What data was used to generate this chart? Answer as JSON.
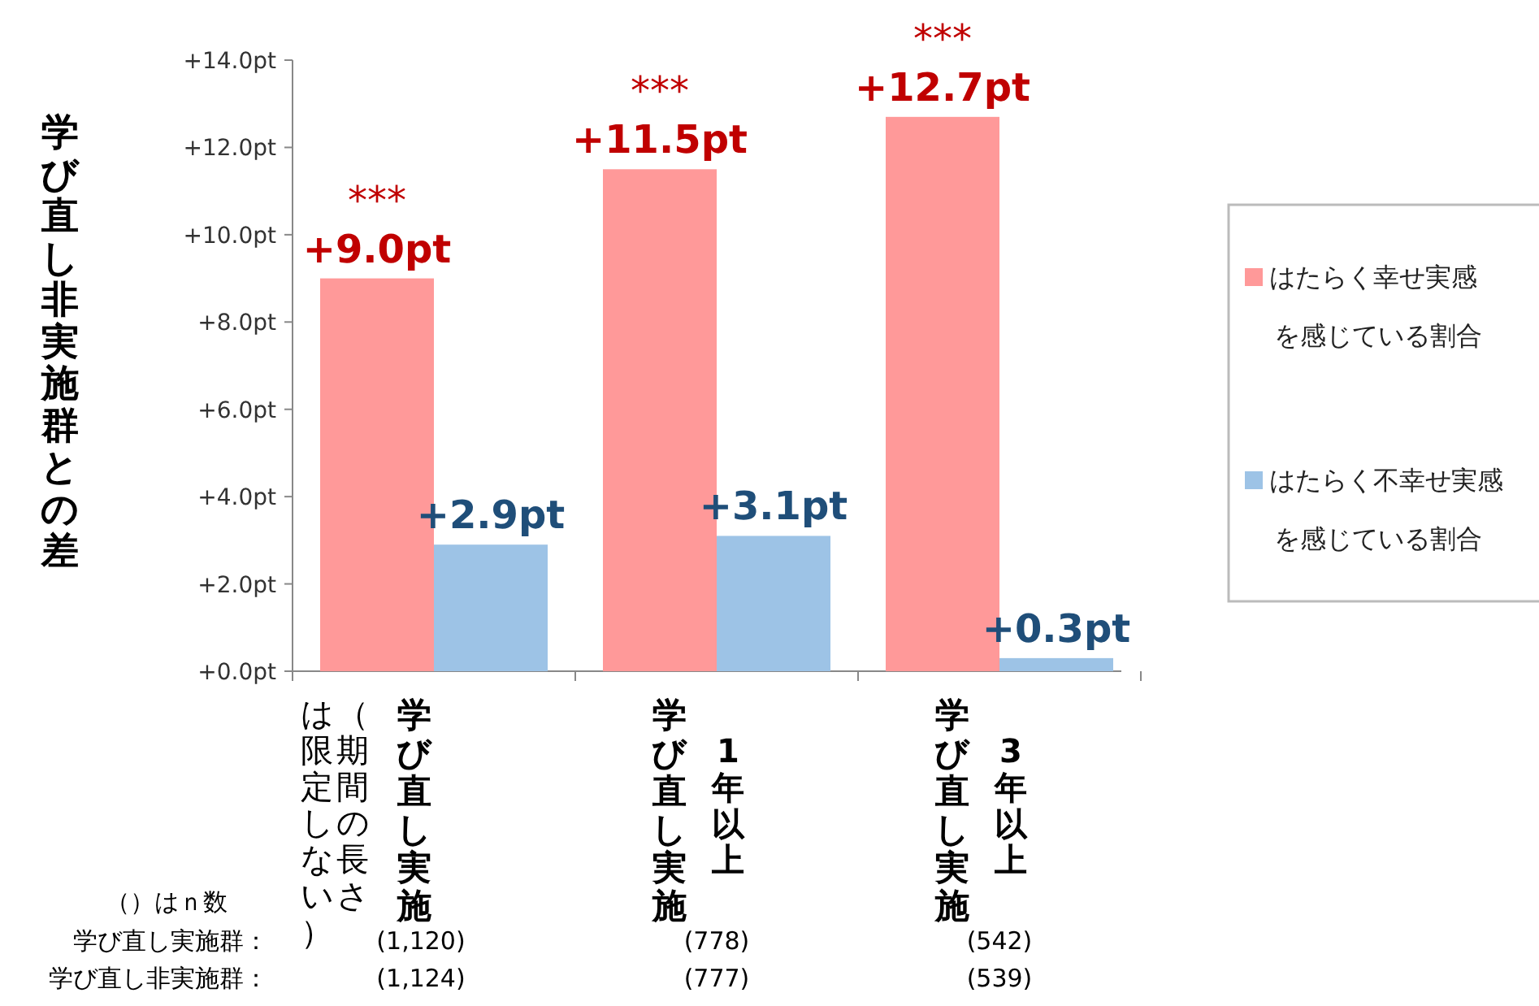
{
  "chart_data": {
    "type": "bar",
    "ylabel": "学び直し非実施群との差",
    "categories": [
      "学び直し実施",
      "学び直し実施",
      "学び直し実施"
    ],
    "series": [
      {
        "name": "はたらく幸せ実感を感じている割合",
        "color": "#ff9999",
        "values": [
          9.0,
          11.5,
          12.7
        ],
        "value_labels": [
          "+9.0pt",
          "+11.5pt",
          "+12.7pt"
        ]
      },
      {
        "name": "はたらく不幸せ実感を感じている割合",
        "color": "#9dc3e6",
        "values": [
          2.9,
          3.1,
          0.3
        ],
        "value_labels": [
          "+2.9pt",
          "+3.1pt",
          "+0.3pt"
        ]
      }
    ],
    "ylim": [
      0,
      14
    ],
    "yticks": [
      {
        "value": 0,
        "label": "+0.0pt"
      },
      {
        "value": 2,
        "label": "+2.0pt"
      },
      {
        "value": 4,
        "label": "+4.0pt"
      },
      {
        "value": 6,
        "label": "+6.0pt"
      },
      {
        "value": 8,
        "label": "+8.0pt"
      },
      {
        "value": 10,
        "label": "+10.0pt"
      },
      {
        "value": 12,
        "label": "+12.0pt"
      },
      {
        "value": 14,
        "label": "+14.0pt"
      }
    ],
    "grid": false,
    "legend": "right",
    "annotations": [
      "***",
      "***",
      "***",
      "（期間の長さ",
      "は限定しない）",
      "1年以上",
      "3年以上",
      "（）はｎ数",
      "学び直し実施群：",
      "(1,120)",
      "(778)",
      "(542)",
      "学び直し非実施群：",
      "(1,124)",
      "(777)",
      "(539)"
    ]
  }
}
